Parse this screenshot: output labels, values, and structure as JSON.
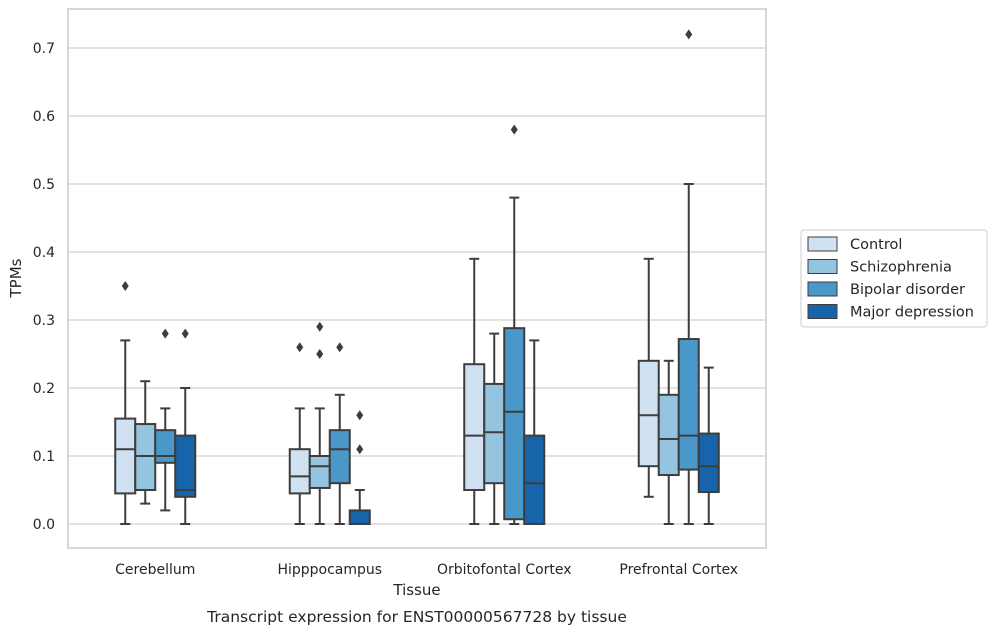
{
  "chart_data": {
    "type": "box",
    "caption": "Transcript expression for ENST00000567728 by tissue",
    "xlabel": "Tissue",
    "ylabel": "TPMs",
    "ylim": [
      -0.035,
      0.76
    ],
    "yticks": [
      0.0,
      0.1,
      0.2,
      0.3,
      0.4,
      0.5,
      0.6,
      0.7
    ],
    "ytick_labels": [
      "0.0",
      "0.1",
      "0.2",
      "0.3",
      "0.4",
      "0.5",
      "0.6",
      "0.7"
    ],
    "grid": "horizontal",
    "legend_position": "right",
    "categories": [
      "Cerebellum",
      "Hipppocampus",
      "Orbitofontal Cortex",
      "Prefrontal Cortex"
    ],
    "series": [
      {
        "name": "Control",
        "color": "#d0e1f2",
        "boxes": [
          {
            "whisker_low": 0.0,
            "q1": 0.045,
            "median": 0.11,
            "q3": 0.155,
            "whisker_high": 0.27,
            "outliers": [
              0.35
            ]
          },
          {
            "whisker_low": 0.0,
            "q1": 0.045,
            "median": 0.07,
            "q3": 0.11,
            "whisker_high": 0.17,
            "outliers": [
              0.26
            ]
          },
          {
            "whisker_low": 0.0,
            "q1": 0.05,
            "median": 0.13,
            "q3": 0.235,
            "whisker_high": 0.39,
            "outliers": []
          },
          {
            "whisker_low": 0.04,
            "q1": 0.085,
            "median": 0.16,
            "q3": 0.24,
            "whisker_high": 0.39,
            "outliers": []
          }
        ]
      },
      {
        "name": "Schizophrenia",
        "color": "#94c4df",
        "boxes": [
          {
            "whisker_low": 0.03,
            "q1": 0.05,
            "median": 0.1,
            "q3": 0.147,
            "whisker_high": 0.21,
            "outliers": []
          },
          {
            "whisker_low": 0.0,
            "q1": 0.053,
            "median": 0.085,
            "q3": 0.1,
            "whisker_high": 0.17,
            "outliers": [
              0.25,
              0.29
            ]
          },
          {
            "whisker_low": 0.0,
            "q1": 0.06,
            "median": 0.135,
            "q3": 0.206,
            "whisker_high": 0.28,
            "outliers": []
          },
          {
            "whisker_low": 0.0,
            "q1": 0.072,
            "median": 0.125,
            "q3": 0.19,
            "whisker_high": 0.24,
            "outliers": []
          }
        ]
      },
      {
        "name": "Bipolar disorder",
        "color": "#4a98c9",
        "boxes": [
          {
            "whisker_low": 0.02,
            "q1": 0.09,
            "median": 0.1,
            "q3": 0.138,
            "whisker_high": 0.17,
            "outliers": [
              0.28
            ]
          },
          {
            "whisker_low": 0.0,
            "q1": 0.06,
            "median": 0.11,
            "q3": 0.138,
            "whisker_high": 0.19,
            "outliers": [
              0.26
            ]
          },
          {
            "whisker_low": 0.0,
            "q1": 0.007,
            "median": 0.165,
            "q3": 0.288,
            "whisker_high": 0.48,
            "outliers": [
              0.58
            ]
          },
          {
            "whisker_low": 0.0,
            "q1": 0.08,
            "median": 0.13,
            "q3": 0.272,
            "whisker_high": 0.5,
            "outliers": [
              0.72
            ]
          }
        ]
      },
      {
        "name": "Major depression",
        "color": "#1764ab",
        "boxes": [
          {
            "whisker_low": 0.0,
            "q1": 0.04,
            "median": 0.05,
            "q3": 0.13,
            "whisker_high": 0.2,
            "outliers": [
              0.28
            ]
          },
          {
            "whisker_low": 0.0,
            "q1": 0.0,
            "median": 0.0,
            "q3": 0.02,
            "whisker_high": 0.05,
            "outliers": [
              0.11,
              0.16
            ]
          },
          {
            "whisker_low": 0.0,
            "q1": 0.0,
            "median": 0.06,
            "q3": 0.13,
            "whisker_high": 0.27,
            "outliers": []
          },
          {
            "whisker_low": 0.0,
            "q1": 0.047,
            "median": 0.085,
            "q3": 0.133,
            "whisker_high": 0.23,
            "outliers": []
          }
        ]
      }
    ]
  }
}
